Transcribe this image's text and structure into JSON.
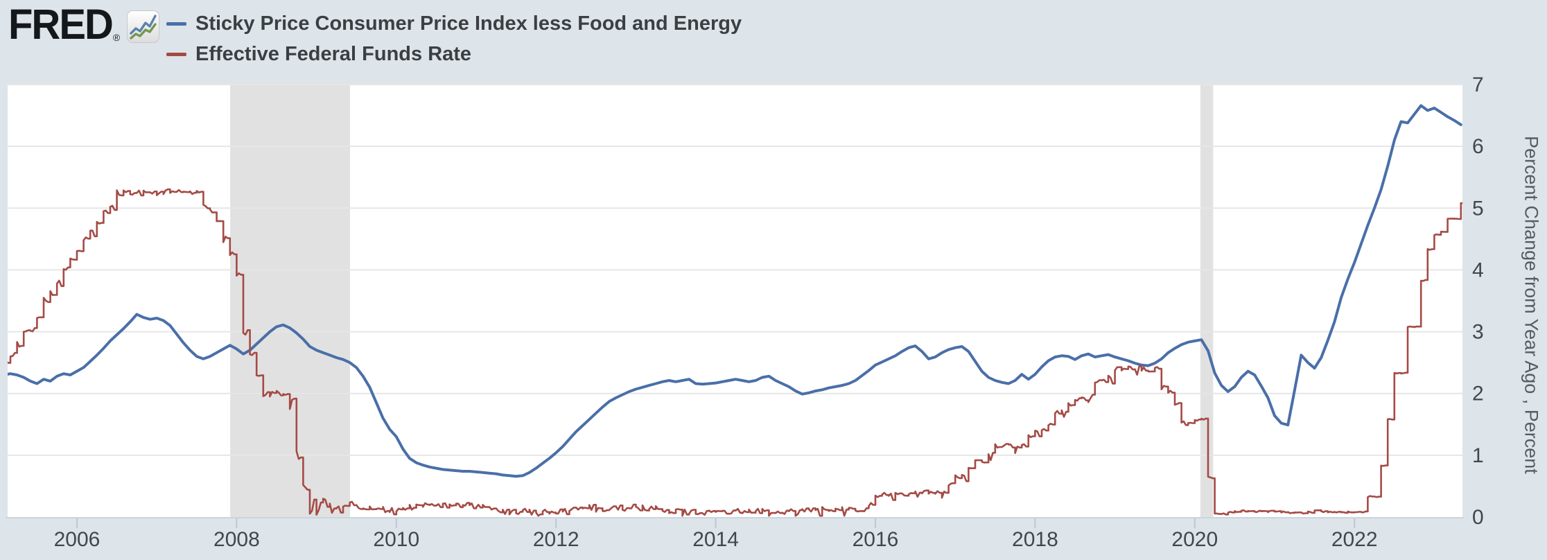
{
  "page": {
    "background": "#dde4ea"
  },
  "header": {
    "logo_text": "FRED",
    "logo_registered": "®",
    "logo_icon": "fred-sparkline-icon"
  },
  "legend": [
    {
      "label": "Sticky Price Consumer Price Index less Food and Energy",
      "color": "#4a6fa8"
    },
    {
      "label": "Effective Federal Funds Rate",
      "color": "#a44a45"
    }
  ],
  "chart_data": {
    "type": "line",
    "title": "",
    "ylabel": "Percent Change from Year Ago , Percent",
    "ylim": [
      0,
      7
    ],
    "yticks": [
      0,
      1,
      2,
      3,
      4,
      5,
      6,
      7
    ],
    "x_ticks": [
      2006,
      2008,
      2010,
      2012,
      2014,
      2016,
      2018,
      2020,
      2022
    ],
    "x_range": [
      2005.08,
      2023.37
    ],
    "grid": "horizontal",
    "legend_position": "top-left",
    "colors": {
      "plot_background": "#ffffff",
      "gridline": "#e6e6e6",
      "recession_band": "#e1e1e1",
      "axis_line": "#ccd5dd",
      "tick_mark": "#bcc8d4",
      "tick_label": "#40474d"
    },
    "recession_bands": [
      {
        "start": 2007.92,
        "end": 2009.42
      },
      {
        "start": 2020.07,
        "end": 2020.23
      }
    ],
    "start_year": 2005,
    "start_month": 2,
    "frequency": "monthly",
    "series": [
      {
        "name": "Sticky Price Consumer Price Index less Food and Energy",
        "color": "#4a6fa8",
        "style": "smooth",
        "values": [
          2.3,
          2.32,
          2.3,
          2.26,
          2.2,
          2.16,
          2.23,
          2.2,
          2.28,
          2.32,
          2.3,
          2.36,
          2.42,
          2.52,
          2.62,
          2.73,
          2.85,
          2.95,
          3.05,
          3.16,
          3.28,
          3.23,
          3.2,
          3.22,
          3.18,
          3.1,
          2.96,
          2.82,
          2.7,
          2.6,
          2.56,
          2.6,
          2.66,
          2.72,
          2.78,
          2.72,
          2.64,
          2.7,
          2.8,
          2.9,
          3.0,
          3.08,
          3.11,
          3.06,
          2.98,
          2.88,
          2.76,
          2.7,
          2.66,
          2.62,
          2.58,
          2.55,
          2.5,
          2.42,
          2.28,
          2.1,
          1.85,
          1.6,
          1.42,
          1.3,
          1.1,
          0.95,
          0.88,
          0.84,
          0.81,
          0.79,
          0.77,
          0.76,
          0.75,
          0.74,
          0.74,
          0.73,
          0.72,
          0.71,
          0.7,
          0.68,
          0.67,
          0.66,
          0.67,
          0.72,
          0.79,
          0.87,
          0.95,
          1.04,
          1.14,
          1.26,
          1.38,
          1.48,
          1.58,
          1.68,
          1.78,
          1.87,
          1.93,
          1.98,
          2.03,
          2.07,
          2.1,
          2.13,
          2.16,
          2.19,
          2.21,
          2.19,
          2.21,
          2.23,
          2.16,
          2.15,
          2.16,
          2.17,
          2.19,
          2.21,
          2.23,
          2.21,
          2.19,
          2.21,
          2.26,
          2.28,
          2.21,
          2.16,
          2.11,
          2.04,
          1.99,
          2.01,
          2.04,
          2.06,
          2.09,
          2.11,
          2.13,
          2.16,
          2.21,
          2.29,
          2.37,
          2.46,
          2.51,
          2.56,
          2.61,
          2.68,
          2.74,
          2.77,
          2.68,
          2.56,
          2.59,
          2.66,
          2.71,
          2.74,
          2.76,
          2.68,
          2.52,
          2.36,
          2.26,
          2.21,
          2.18,
          2.16,
          2.21,
          2.31,
          2.23,
          2.31,
          2.43,
          2.53,
          2.59,
          2.61,
          2.6,
          2.55,
          2.61,
          2.64,
          2.59,
          2.61,
          2.63,
          2.59,
          2.56,
          2.53,
          2.49,
          2.46,
          2.45,
          2.49,
          2.56,
          2.66,
          2.73,
          2.79,
          2.83,
          2.85,
          2.87,
          2.69,
          2.33,
          2.13,
          2.03,
          2.11,
          2.26,
          2.36,
          2.3,
          2.12,
          1.93,
          1.64,
          1.52,
          1.49,
          2.05,
          2.62,
          2.5,
          2.41,
          2.58,
          2.86,
          3.16,
          3.55,
          3.85,
          4.12,
          4.42,
          4.72,
          5.0,
          5.3,
          5.68,
          6.1,
          6.4,
          6.38,
          6.52,
          6.66,
          6.58,
          6.62,
          6.55,
          6.48,
          6.42,
          6.35
        ]
      },
      {
        "name": "Effective Federal Funds Rate",
        "color": "#a44a45",
        "style": "step-daily",
        "values": [
          2.5,
          2.63,
          2.79,
          3.0,
          3.04,
          3.26,
          3.5,
          3.62,
          3.78,
          4.0,
          4.16,
          4.29,
          4.49,
          4.59,
          4.79,
          4.94,
          4.99,
          5.24,
          5.25,
          5.25,
          5.25,
          5.25,
          5.24,
          5.25,
          5.26,
          5.26,
          5.25,
          5.25,
          5.25,
          5.26,
          5.02,
          4.94,
          4.76,
          4.49,
          4.24,
          3.94,
          2.98,
          2.61,
          2.28,
          1.98,
          2.0,
          2.01,
          2.0,
          1.81,
          0.97,
          0.39,
          0.16,
          0.15,
          0.22,
          0.18,
          0.15,
          0.18,
          0.21,
          0.16,
          0.16,
          0.15,
          0.12,
          0.12,
          0.12,
          0.11,
          0.13,
          0.16,
          0.2,
          0.2,
          0.18,
          0.18,
          0.19,
          0.19,
          0.19,
          0.19,
          0.18,
          0.17,
          0.16,
          0.14,
          0.1,
          0.09,
          0.09,
          0.07,
          0.1,
          0.08,
          0.07,
          0.08,
          0.07,
          0.08,
          0.1,
          0.13,
          0.14,
          0.16,
          0.16,
          0.16,
          0.13,
          0.14,
          0.16,
          0.16,
          0.16,
          0.14,
          0.15,
          0.14,
          0.15,
          0.11,
          0.09,
          0.09,
          0.08,
          0.08,
          0.09,
          0.08,
          0.09,
          0.07,
          0.07,
          0.08,
          0.09,
          0.09,
          0.1,
          0.09,
          0.09,
          0.09,
          0.09,
          0.09,
          0.12,
          0.11,
          0.11,
          0.11,
          0.12,
          0.12,
          0.13,
          0.13,
          0.14,
          0.14,
          0.12,
          0.12,
          0.24,
          0.34,
          0.38,
          0.36,
          0.37,
          0.37,
          0.38,
          0.39,
          0.4,
          0.4,
          0.4,
          0.41,
          0.54,
          0.65,
          0.66,
          0.79,
          0.9,
          0.91,
          1.04,
          1.15,
          1.16,
          1.15,
          1.15,
          1.16,
          1.3,
          1.41,
          1.42,
          1.51,
          1.69,
          1.7,
          1.82,
          1.91,
          1.91,
          1.95,
          2.19,
          2.2,
          2.27,
          2.4,
          2.4,
          2.41,
          2.42,
          2.39,
          2.38,
          2.4,
          2.13,
          2.04,
          1.83,
          1.55,
          1.55,
          1.55,
          1.58,
          0.65,
          0.05,
          0.05,
          0.08,
          0.09,
          0.1,
          0.09,
          0.09,
          0.09,
          0.09,
          0.09,
          0.08,
          0.07,
          0.07,
          0.06,
          0.08,
          0.1,
          0.09,
          0.08,
          0.08,
          0.08,
          0.08,
          0.08,
          0.08,
          0.33,
          0.33,
          0.83,
          1.58,
          2.33,
          2.33,
          3.08,
          3.08,
          3.83,
          4.33,
          4.57,
          4.62,
          4.83,
          4.83,
          5.08
        ]
      }
    ]
  }
}
